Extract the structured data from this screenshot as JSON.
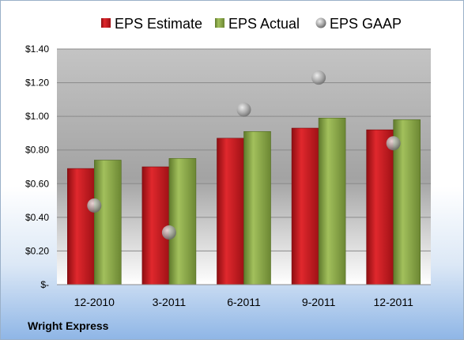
{
  "chart_data": {
    "type": "bar",
    "categories": [
      "12-2010",
      "3-2011",
      "6-2011",
      "9-2011",
      "12-2011"
    ],
    "series": [
      {
        "name": "EPS Estimate",
        "kind": "bar",
        "color": "#c0161c",
        "values": [
          0.69,
          0.7,
          0.87,
          0.93,
          0.92
        ]
      },
      {
        "name": "EPS Actual",
        "kind": "bar",
        "color": "#8aa64a",
        "values": [
          0.74,
          0.75,
          0.91,
          0.99,
          0.98
        ]
      },
      {
        "name": "EPS GAAP",
        "kind": "scatter",
        "color": "#a6a6a6",
        "values": [
          0.47,
          0.31,
          1.04,
          1.23,
          0.84
        ]
      }
    ],
    "ylim": [
      0,
      1.4
    ],
    "yticks": [
      0,
      0.2,
      0.4,
      0.6,
      0.8,
      1.0,
      1.2,
      1.4
    ],
    "ytick_labels": [
      "$-",
      "$0.20",
      "$0.40",
      "$0.60",
      "$0.80",
      "$1.00",
      "$1.20",
      "$1.40"
    ],
    "grid": true,
    "legend_position": "top"
  },
  "footer": {
    "company": "Wright Express"
  }
}
